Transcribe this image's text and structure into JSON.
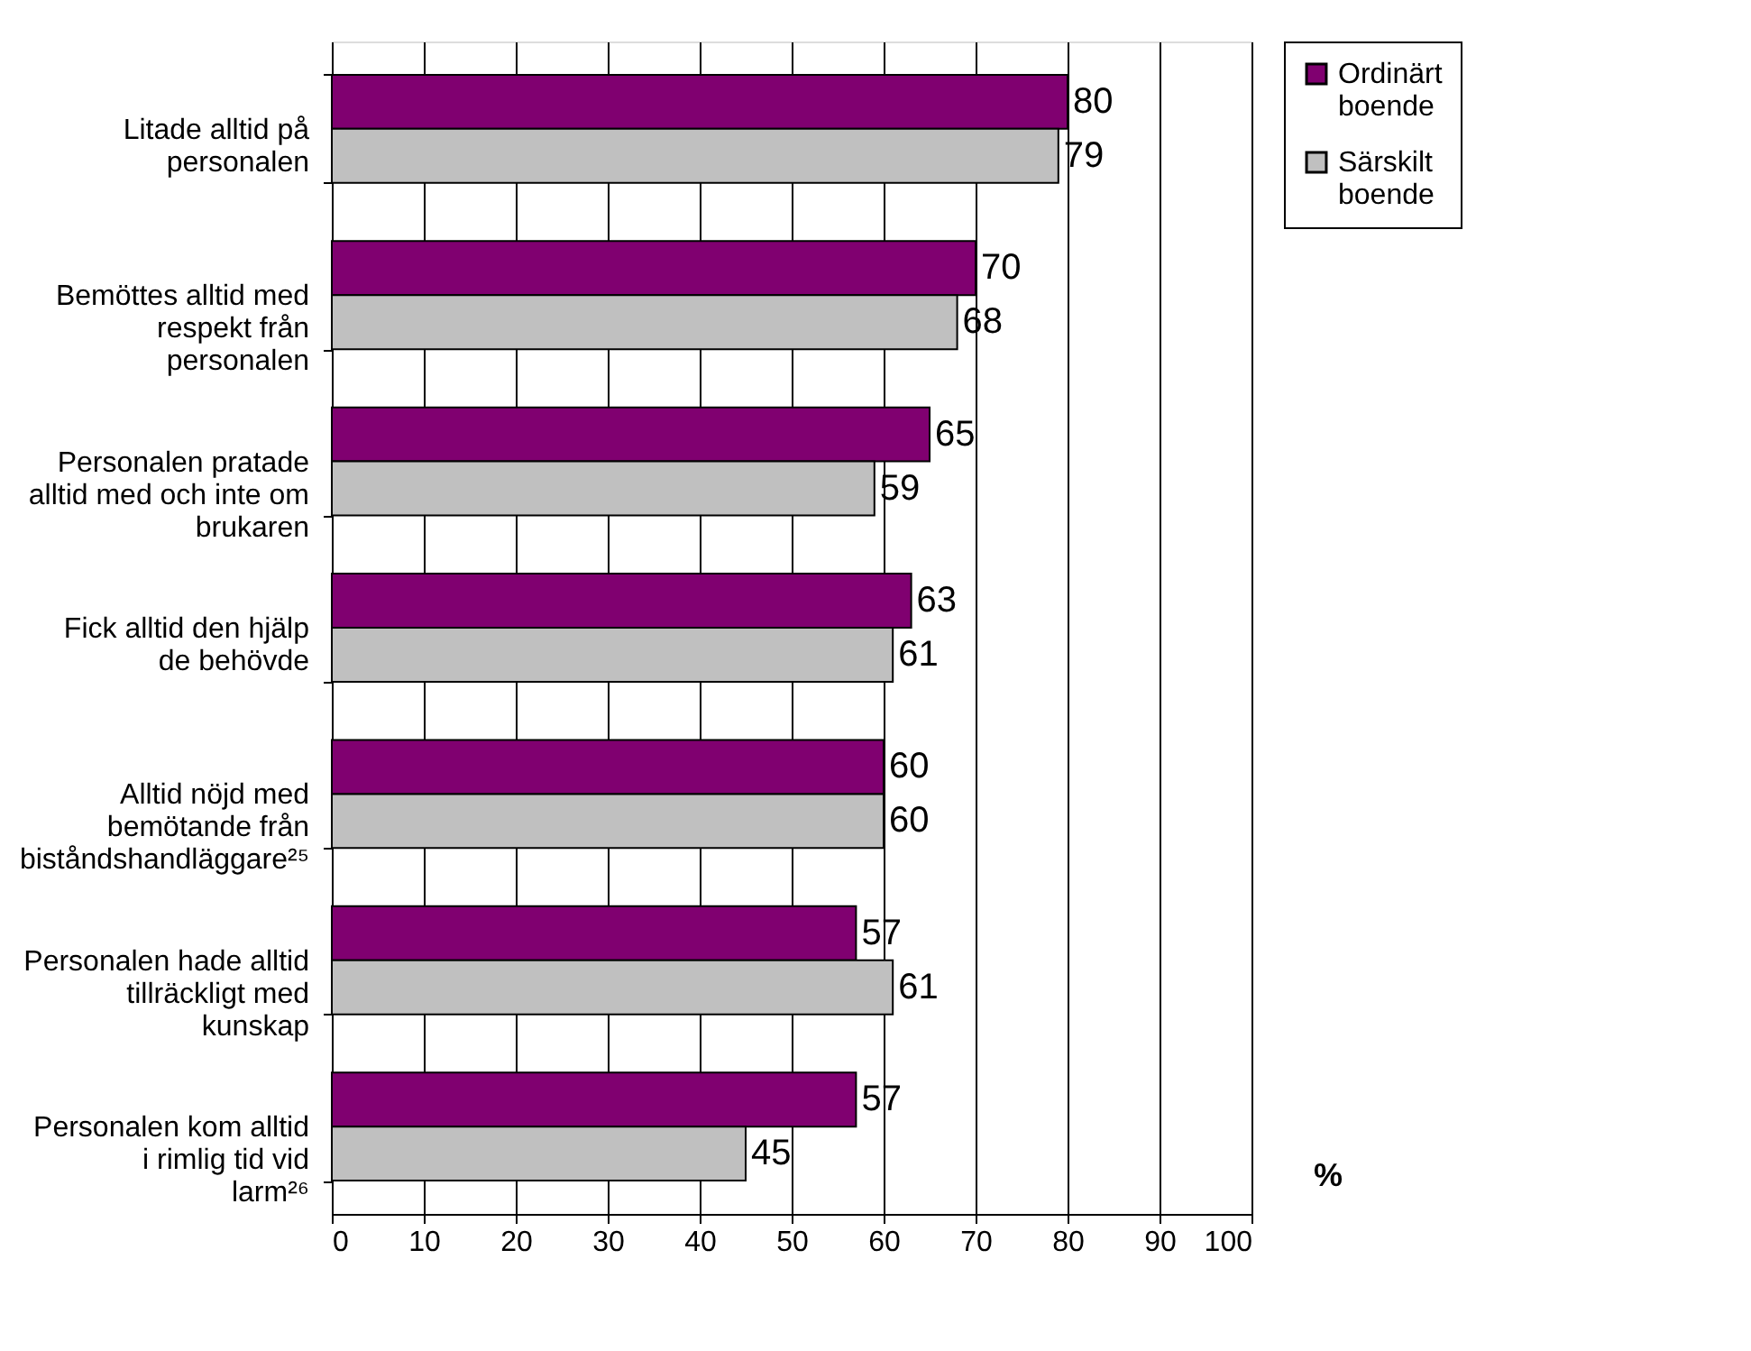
{
  "chart_data": {
    "type": "bar",
    "orientation": "horizontal",
    "xlabel": "%",
    "categories": [
      "Litade alltid på personalen",
      "Bemöttes alltid med respekt från personalen",
      "Personalen pratade alltid med och inte om brukaren",
      "Fick alltid den hjälp de behövde",
      "Alltid nöjd med bemötande från biståndshandläggare²⁵",
      "Personalen hade alltid tillräckligt med kunskap",
      "Personalen kom alltid i rimlig tid vid larm²⁶"
    ],
    "series": [
      {
        "name": "Ordinärt boende",
        "color": "#800070",
        "values": [
          80,
          70,
          65,
          63,
          60,
          57,
          57
        ]
      },
      {
        "name": "Särskilt boende",
        "color": "#c0c0c0",
        "values": [
          79,
          68,
          59,
          61,
          60,
          61,
          45
        ]
      }
    ],
    "xlim": [
      0,
      100
    ],
    "xticks": [
      0,
      10,
      20,
      30,
      40,
      50,
      60,
      70,
      80,
      90,
      100
    ],
    "grid": "x",
    "legend": "right",
    "data_labels": true
  }
}
